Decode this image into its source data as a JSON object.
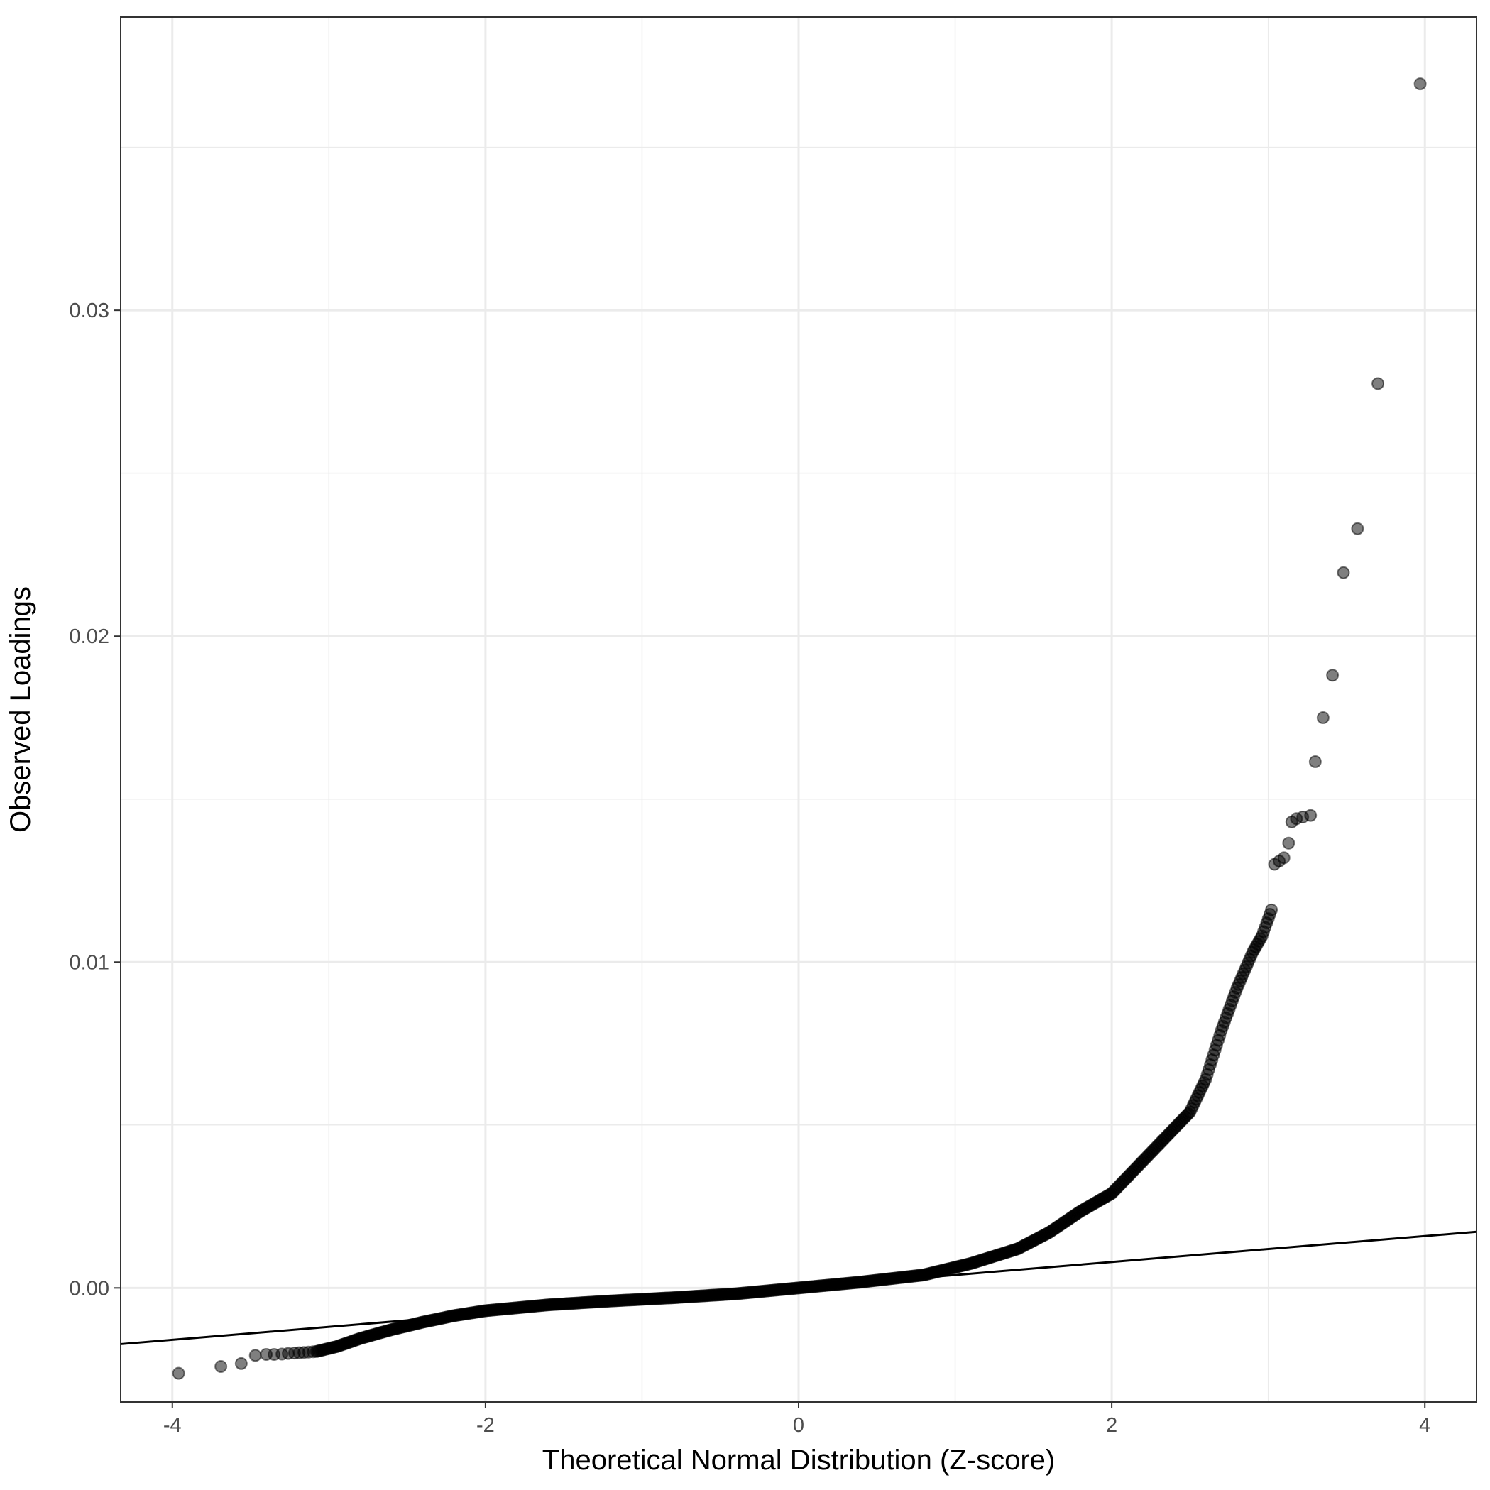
{
  "chart_data": {
    "type": "scatter",
    "title": "",
    "xlabel": "Theoretical Normal Distribution (Z-score)",
    "ylabel": "Observed Loadings",
    "xlim": [
      -4.33,
      4.33
    ],
    "ylim": [
      -0.0035,
      0.039
    ],
    "x_ticks": [
      {
        "value": -4,
        "label": "-4"
      },
      {
        "value": -2,
        "label": "-2"
      },
      {
        "value": 0,
        "label": "0"
      },
      {
        "value": 2,
        "label": "2"
      },
      {
        "value": 4,
        "label": "4"
      }
    ],
    "y_ticks": [
      {
        "value": 0.0,
        "label": "0.00"
      },
      {
        "value": 0.01,
        "label": "0.01"
      },
      {
        "value": 0.02,
        "label": "0.02"
      },
      {
        "value": 0.03,
        "label": "0.03"
      }
    ],
    "x_minor_gridlines": [
      -3,
      -1,
      1,
      3
    ],
    "y_minor_gridlines": [
      0.005,
      0.015,
      0.025,
      0.035
    ],
    "grid": true,
    "theme": "black-and-white",
    "point_color": "#000000",
    "point_opacity": 0.5,
    "reference_line": {
      "intercept": 0.0,
      "slope": 0.000398
    },
    "outlier_points": [
      {
        "x": -3.96,
        "y": -0.00262
      },
      {
        "x": -3.69,
        "y": -0.00241
      },
      {
        "x": -3.56,
        "y": -0.00232
      },
      {
        "x": -3.47,
        "y": -0.00207
      },
      {
        "x": -3.4,
        "y": -0.00204
      },
      {
        "x": -3.35,
        "y": -0.00204
      },
      {
        "x": -3.3,
        "y": -0.00203
      },
      {
        "x": -3.26,
        "y": -0.00201
      },
      {
        "x": -3.22,
        "y": -0.002
      },
      {
        "x": -3.19,
        "y": -0.00199
      },
      {
        "x": -3.16,
        "y": -0.00198
      },
      {
        "x": -3.13,
        "y": -0.00197
      },
      {
        "x": -3.1,
        "y": -0.00196
      },
      {
        "x": 3.04,
        "y": 0.013
      },
      {
        "x": 3.07,
        "y": 0.0131
      },
      {
        "x": 3.1,
        "y": 0.0132
      },
      {
        "x": 3.13,
        "y": 0.01365
      },
      {
        "x": 3.15,
        "y": 0.0143
      },
      {
        "x": 3.18,
        "y": 0.0144
      },
      {
        "x": 3.22,
        "y": 0.01445
      },
      {
        "x": 3.27,
        "y": 0.0145
      },
      {
        "x": 3.3,
        "y": 0.01615
      },
      {
        "x": 3.35,
        "y": 0.0175
      },
      {
        "x": 3.41,
        "y": 0.0188
      },
      {
        "x": 3.48,
        "y": 0.02195
      },
      {
        "x": 3.57,
        "y": 0.0233
      },
      {
        "x": 3.7,
        "y": 0.02775
      },
      {
        "x": 3.97,
        "y": 0.03695
      }
    ],
    "dense_curve": {
      "x_from": -3.08,
      "x_to": 3.02,
      "step": 0.01,
      "anchors": [
        {
          "x": -3.08,
          "y": -0.00195
        },
        {
          "x": -2.95,
          "y": -0.0018
        },
        {
          "x": -2.8,
          "y": -0.00155
        },
        {
          "x": -2.6,
          "y": -0.00128
        },
        {
          "x": -2.4,
          "y": -0.00105
        },
        {
          "x": -2.2,
          "y": -0.00085
        },
        {
          "x": -2.0,
          "y": -0.0007
        },
        {
          "x": -1.6,
          "y": -0.00052
        },
        {
          "x": -1.2,
          "y": -0.0004
        },
        {
          "x": -0.8,
          "y": -0.0003
        },
        {
          "x": -0.4,
          "y": -0.00018
        },
        {
          "x": 0.0,
          "y": 0.0
        },
        {
          "x": 0.4,
          "y": 0.00018
        },
        {
          "x": 0.8,
          "y": 0.0004
        },
        {
          "x": 1.1,
          "y": 0.00075
        },
        {
          "x": 1.4,
          "y": 0.0012
        },
        {
          "x": 1.6,
          "y": 0.0017
        },
        {
          "x": 1.8,
          "y": 0.00235
        },
        {
          "x": 2.0,
          "y": 0.0029
        },
        {
          "x": 2.2,
          "y": 0.0039
        },
        {
          "x": 2.4,
          "y": 0.0049
        },
        {
          "x": 2.5,
          "y": 0.0054
        },
        {
          "x": 2.6,
          "y": 0.0064
        },
        {
          "x": 2.7,
          "y": 0.0079
        },
        {
          "x": 2.8,
          "y": 0.0092
        },
        {
          "x": 2.9,
          "y": 0.0103
        },
        {
          "x": 2.96,
          "y": 0.0108
        },
        {
          "x": 3.02,
          "y": 0.0116
        }
      ]
    }
  }
}
